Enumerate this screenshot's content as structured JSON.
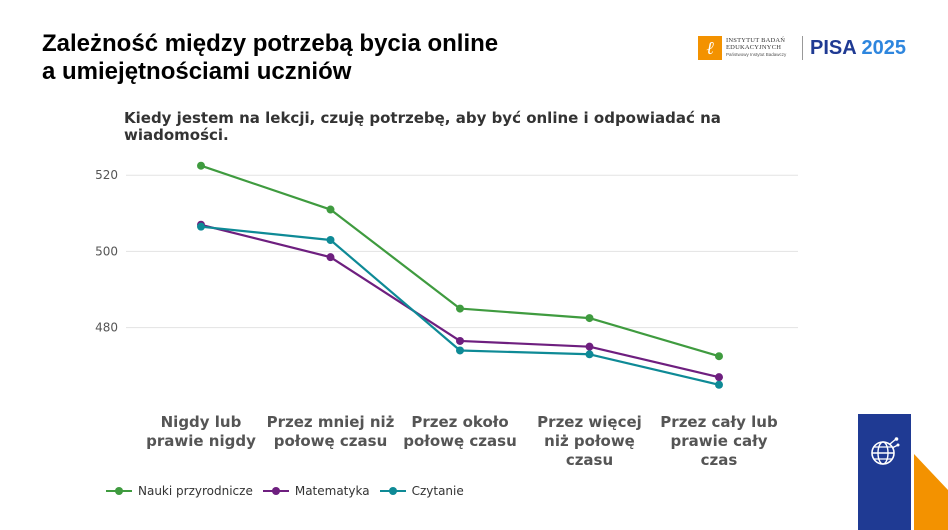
{
  "page": {
    "title_line1": "Zależność między potrzebą bycia online",
    "title_line2": "a umiejętnościami uczniów"
  },
  "logos": {
    "ibe_line1": "INSTYTUT BADAŃ",
    "ibe_line2": "EDUKACYJNYCH",
    "ibe_line3": "Państwowy Instytut Badawczy",
    "pisa_word": "PISA",
    "pisa_year": "2025",
    "colors": {
      "ibe_orange": "#f39200",
      "pisa_navy": "#1f3a93",
      "pisa_blue": "#2e86de"
    }
  },
  "chart_data": {
    "type": "line",
    "title": "Kiedy jestem na lekcji, czuję potrzebę, aby być online i odpowiadać na wiadomości.",
    "xlabel": "",
    "ylabel": "",
    "ylim": [
      461,
      524
    ],
    "yticks": [
      480,
      500,
      520
    ],
    "grid": true,
    "legend_position": "bottom",
    "categories": [
      [
        "Nigdy lub",
        "prawie nigdy"
      ],
      [
        "Przez mniej niż",
        "połowę czasu"
      ],
      [
        "Przez około",
        "połowę czasu"
      ],
      [
        "Przez więcej",
        "niż połowę",
        "czasu"
      ],
      [
        "Przez cały lub",
        "prawie cały",
        "czas"
      ]
    ],
    "series": [
      {
        "name": "Nauki przyrodnicze",
        "color": "#3f9b3f",
        "values": [
          522.5,
          511,
          485,
          482.5,
          472.5
        ]
      },
      {
        "name": "Matematyka",
        "color": "#6e1f7f",
        "values": [
          507,
          498.5,
          476.5,
          475,
          467
        ]
      },
      {
        "name": "Czytanie",
        "color": "#0e8a96",
        "values": [
          506.5,
          503,
          474,
          473,
          465
        ]
      }
    ]
  },
  "decorations": {
    "badge_icon": "globe-network-icon",
    "corner_color": "#f39200",
    "badge_color": "#1f3a93"
  }
}
